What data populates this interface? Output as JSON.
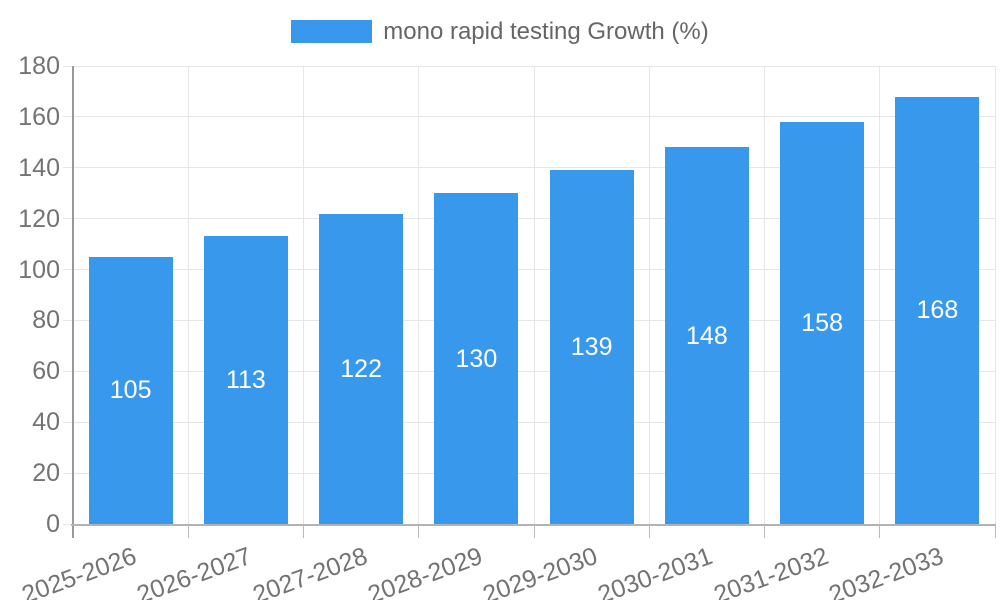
{
  "legend": {
    "items": [
      {
        "label": "mono rapid testing Growth (%)",
        "color": "#3898EC"
      }
    ]
  },
  "chart_data": {
    "type": "bar",
    "title": "",
    "xlabel": "",
    "ylabel": "",
    "categories": [
      "2025-2026",
      "2026-2027",
      "2027-2028",
      "2028-2029",
      "2029-2030",
      "2030-2031",
      "2031-2032",
      "2032-2033"
    ],
    "series": [
      {
        "name": "mono rapid testing Growth (%)",
        "values": [
          105,
          113,
          122,
          130,
          139,
          148,
          158,
          168
        ],
        "color": "#3898EC"
      }
    ],
    "ylim": [
      0,
      180
    ],
    "yticks": [
      0,
      20,
      40,
      60,
      80,
      100,
      120,
      140,
      160,
      180
    ],
    "grid": true,
    "legend_position": "top",
    "value_labels": "inside-center",
    "value_label_color": "#FFFFFF",
    "x_label_rotation_deg": -20
  },
  "colors": {
    "bar": "#3898EC",
    "grid_line": "#E6E6E6",
    "y_axis_line": "#999999",
    "x_axis_line": "#B3B3B3",
    "tick_label": "#737373",
    "legend_text": "#666666",
    "background": "#FFFFFF"
  }
}
